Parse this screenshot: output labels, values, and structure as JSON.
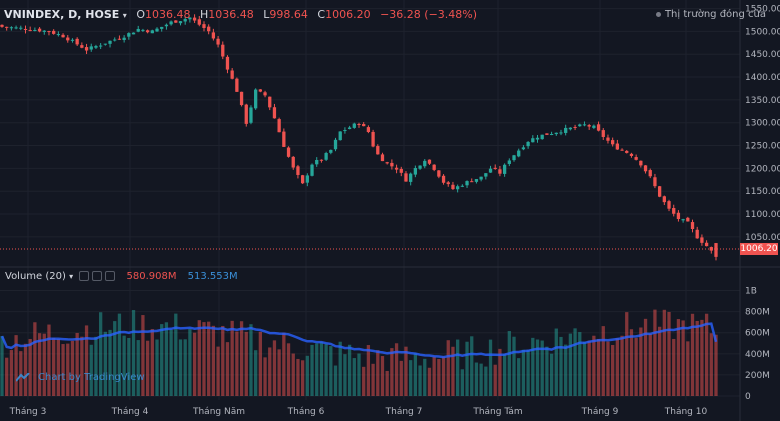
{
  "header": {
    "symbol": "VNINDEX, D, HOSE",
    "o_label": "O",
    "o_value": "1036.48",
    "h_label": "H",
    "h_value": "1036.48",
    "l_label": "L",
    "l_value": "998.64",
    "c_label": "C",
    "c_value": "1006.20",
    "change": "−36.28 (−3.48%)"
  },
  "status_text": "Thị trường đóng cửa",
  "volume_header": {
    "label": "Volume (20)",
    "value_current": "580.908M",
    "value_ma": "513.553M"
  },
  "watermark": "Chart by TradingView",
  "price_tag": "1006.20",
  "colors": {
    "background": "#131722",
    "up": "#26a69a",
    "down": "#ef5350",
    "ma_line": "#2962ff"
  },
  "chart_data": [
    {
      "type": "candlestick",
      "x_tick_labels": [
        "Tháng 3",
        "Tháng 4",
        "Tháng Năm",
        "Tháng 6",
        "Tháng 7",
        "Tháng Tám",
        "Tháng 9",
        "Tháng 10"
      ],
      "y_tick_labels": [
        "1550.00",
        "1500.00",
        "1450.00",
        "1400.00",
        "1350.00",
        "1300.00",
        "1250.00",
        "1200.00",
        "1150.00",
        "1100.00",
        "1050.00"
      ],
      "ylim": [
        995,
        1560
      ],
      "grid": true,
      "last_ohlc": {
        "o": 1036.48,
        "h": 1036.48,
        "l": 998.64,
        "c": 1006.2
      },
      "close_anchors": [
        [
          0,
          1510
        ],
        [
          6,
          1505
        ],
        [
          10,
          1500
        ],
        [
          13,
          1490
        ],
        [
          18,
          1460
        ],
        [
          22,
          1475
        ],
        [
          26,
          1490
        ],
        [
          29,
          1505
        ],
        [
          32,
          1500
        ],
        [
          36,
          1520
        ],
        [
          38,
          1525
        ],
        [
          40,
          1530
        ],
        [
          42,
          1515
        ],
        [
          44,
          1500
        ],
        [
          46,
          1470
        ],
        [
          48,
          1420
        ],
        [
          50,
          1370
        ],
        [
          52,
          1300
        ],
        [
          54,
          1370
        ],
        [
          56,
          1360
        ],
        [
          58,
          1310
        ],
        [
          60,
          1250
        ],
        [
          62,
          1200
        ],
        [
          64,
          1165
        ],
        [
          66,
          1210
        ],
        [
          68,
          1220
        ],
        [
          70,
          1240
        ],
        [
          72,
          1280
        ],
        [
          74,
          1290
        ],
        [
          76,
          1300
        ],
        [
          78,
          1280
        ],
        [
          79,
          1250
        ],
        [
          80,
          1230
        ],
        [
          82,
          1210
        ],
        [
          84,
          1200
        ],
        [
          86,
          1175
        ],
        [
          88,
          1200
        ],
        [
          90,
          1220
        ],
        [
          92,
          1200
        ],
        [
          94,
          1170
        ],
        [
          96,
          1155
        ],
        [
          98,
          1165
        ],
        [
          100,
          1175
        ],
        [
          102,
          1180
        ],
        [
          104,
          1200
        ],
        [
          106,
          1190
        ],
        [
          108,
          1220
        ],
        [
          110,
          1240
        ],
        [
          112,
          1260
        ],
        [
          114,
          1270
        ],
        [
          116,
          1275
        ],
        [
          118,
          1280
        ],
        [
          120,
          1285
        ],
        [
          122,
          1290
        ],
        [
          124,
          1295
        ],
        [
          126,
          1290
        ],
        [
          128,
          1270
        ],
        [
          130,
          1250
        ],
        [
          132,
          1240
        ],
        [
          134,
          1230
        ],
        [
          136,
          1210
        ],
        [
          138,
          1180
        ],
        [
          140,
          1140
        ],
        [
          142,
          1110
        ],
        [
          144,
          1090
        ],
        [
          146,
          1080
        ],
        [
          148,
          1050
        ],
        [
          150,
          1030
        ],
        [
          152,
          1006.2
        ]
      ]
    },
    {
      "type": "volume",
      "title": "Volume (20)",
      "y_tick_labels": [
        "1B",
        "800M",
        "600M",
        "400M",
        "200M",
        "0"
      ],
      "ylim": [
        0,
        1100000000
      ],
      "current": 580908000,
      "ma20": 513553000
    }
  ]
}
